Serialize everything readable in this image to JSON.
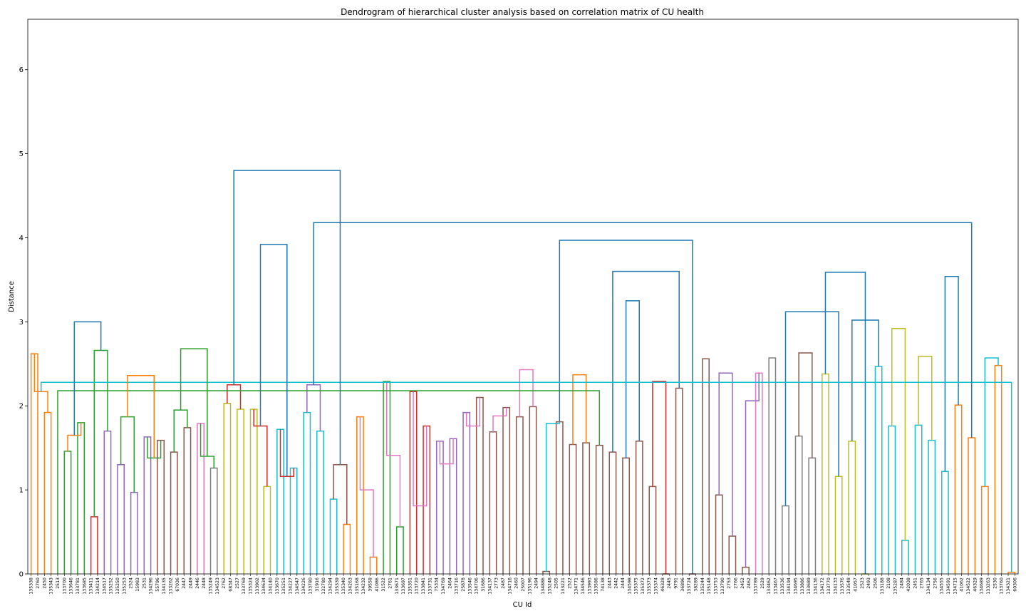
{
  "chart_data": {
    "type": "dendrogram",
    "title": "Dendrogram of hierarchical cluster analysis based on correlation matrix of CU health",
    "xlabel": "CU Id",
    "ylabel": "Distance",
    "ylim": [
      0,
      6.6
    ],
    "yticks": [
      0,
      1,
      2,
      3,
      4,
      5,
      6
    ],
    "grid": false,
    "colors": {
      "orange": "#ff7f0e",
      "green": "#2ca02c",
      "red": "#d62728",
      "purple": "#9467bd",
      "brown": "#8c564b",
      "pink": "#e377c2",
      "gray": "#7f7f7f",
      "olive": "#bcbd22",
      "cyan": "#17becf",
      "above_threshold": "#1f77b4"
    },
    "leaves": [
      "135338",
      "2760",
      "2450",
      "135343",
      "2513",
      "133700",
      "133646",
      "133781",
      "133685",
      "133411",
      "134214",
      "134517",
      "135252",
      "135250",
      "135253",
      "2524",
      "15983",
      "2531",
      "134296",
      "55796",
      "134135",
      "133262",
      "67036",
      "2447",
      "2449",
      "2446",
      "2448",
      "135249",
      "134523",
      "2762",
      "68347",
      "2527",
      "133769",
      "135324",
      "133902",
      "134634",
      "134140",
      "133670",
      "135251",
      "134227",
      "134547",
      "134226",
      "133780",
      "31916",
      "132780",
      "134294",
      "135339",
      "135340",
      "134263",
      "135168",
      "134232",
      "39558",
      "41086",
      "31522",
      "2761",
      "133671",
      "133697",
      "135351",
      "133720",
      "133841",
      "133731",
      "75334",
      "134769",
      "2464",
      "133716",
      "25878",
      "133546",
      "134706",
      "31686",
      "134137",
      "2773",
      "2487",
      "134716",
      "2460",
      "25007",
      "135196",
      "2494",
      "134886",
      "135248",
      "2505",
      "133221",
      "2522",
      "134771",
      "134546",
      "133993",
      "133586",
      "74138",
      "2443",
      "2442",
      "2444",
      "134598",
      "135375",
      "135372",
      "135373",
      "135374",
      "46328",
      "2445",
      "9791",
      "36896",
      "133724",
      "38289",
      "135244",
      "135148",
      "133753",
      "133790",
      "2753",
      "2766",
      "2452",
      "2462",
      "133789",
      "2529",
      "133462",
      "133467",
      "133536",
      "134194",
      "134695",
      "133886",
      "133689",
      "134136",
      "134172",
      "133770",
      "134133",
      "133576",
      "133548",
      "41057",
      "2523",
      "2493",
      "2506",
      "133188",
      "2108",
      "135287",
      "2484",
      "42038",
      "2451",
      "2765",
      "134134",
      "2756",
      "134555",
      "134591",
      "134715",
      "41062",
      "134522",
      "46329",
      "134689",
      "133263",
      "2530",
      "133760",
      "134321",
      "60306"
    ],
    "merges": [
      {
        "left": 0,
        "right": 1,
        "h": 2.62,
        "color": "orange"
      },
      {
        "left": 2,
        "right": 3,
        "h": 1.92,
        "color": "orange"
      },
      {
        "left": 5,
        "right": 6,
        "h": 1.46,
        "color": "green"
      },
      {
        "left": 7,
        "right": 8,
        "h": 1.8,
        "color": "green"
      },
      {
        "left": 9,
        "right": 10,
        "h": 0.68,
        "color": "red"
      },
      {
        "left": 11,
        "right": 12,
        "h": 1.7,
        "color": "purple"
      },
      {
        "left": 13,
        "right": 14,
        "h": 1.3,
        "color": "purple"
      },
      {
        "left": 15,
        "right": 16,
        "h": 0.97,
        "color": "purple"
      },
      {
        "left": 17,
        "right": 18,
        "h": 1.63,
        "color": "purple"
      },
      {
        "left": 19,
        "right": 20,
        "h": 1.59,
        "color": "brown"
      },
      {
        "left": 21,
        "right": 22,
        "h": 1.45,
        "color": "brown"
      },
      {
        "left": 23,
        "right": 24,
        "h": 1.74,
        "color": "brown"
      },
      {
        "left": 25,
        "right": 26,
        "h": 1.79,
        "color": "pink"
      },
      {
        "left": 27,
        "right": 28,
        "h": 1.26,
        "color": "gray"
      },
      {
        "left": 29,
        "right": 30,
        "h": 2.03,
        "color": "olive"
      },
      {
        "left": 31,
        "right": 32,
        "h": 1.96,
        "color": "olive"
      },
      {
        "left": 33,
        "right": 34,
        "h": 1.96,
        "color": "olive"
      },
      {
        "left": 35,
        "right": 36,
        "h": 1.04,
        "color": "olive"
      },
      {
        "left": 37,
        "right": 38,
        "h": 1.72,
        "color": "cyan"
      },
      {
        "left": 39,
        "right": 40,
        "h": 1.26,
        "color": "cyan"
      },
      {
        "left": 41,
        "right": 42,
        "h": 1.92,
        "color": "cyan"
      },
      {
        "left": 43,
        "right": 44,
        "h": 1.7,
        "color": "cyan"
      },
      {
        "left": 45,
        "right": 46,
        "h": 0.89,
        "color": "cyan"
      },
      {
        "left": 47,
        "right": 48,
        "h": 0.59,
        "color": "orange"
      },
      {
        "left": 49,
        "right": 50,
        "h": 1.87,
        "color": "orange"
      },
      {
        "left": 51,
        "right": 52,
        "h": 0.2,
        "color": "orange"
      },
      {
        "left": 53,
        "right": 54,
        "h": 2.29,
        "color": "green"
      },
      {
        "left": 55,
        "right": 56,
        "h": 0.56,
        "color": "green"
      },
      {
        "left": 57,
        "right": 58,
        "h": 2.17,
        "color": "red"
      },
      {
        "left": 59,
        "right": 60,
        "h": 1.76,
        "color": "red"
      },
      {
        "left": 61,
        "right": 62,
        "h": 1.58,
        "color": "purple"
      },
      {
        "left": 63,
        "right": 64,
        "h": 1.61,
        "color": "purple"
      },
      {
        "left": 65,
        "right": 66,
        "h": 1.92,
        "color": "purple"
      },
      {
        "left": 67,
        "right": 68,
        "h": 2.1,
        "color": "brown"
      },
      {
        "left": 69,
        "right": 70,
        "h": 1.69,
        "color": "brown"
      },
      {
        "left": 71,
        "right": 72,
        "h": 1.98,
        "color": "brown"
      },
      {
        "left": 73,
        "right": 74,
        "h": 1.87,
        "color": "brown"
      },
      {
        "left": 75,
        "right": 76,
        "h": 1.99,
        "color": "brown"
      },
      {
        "left": 77,
        "right": 78,
        "h": 0.03,
        "color": "brown"
      },
      {
        "left": 79,
        "right": 80,
        "h": 1.81,
        "color": "brown"
      },
      {
        "left": 81,
        "right": 82,
        "h": 1.54,
        "color": "brown"
      },
      {
        "left": 83,
        "right": 84,
        "h": 1.56,
        "color": "brown"
      },
      {
        "left": 85,
        "right": 86,
        "h": 1.53,
        "color": "brown"
      },
      {
        "left": 87,
        "right": 88,
        "h": 1.45,
        "color": "brown"
      },
      {
        "left": 89,
        "right": 90,
        "h": 1.38,
        "color": "brown"
      },
      {
        "left": 91,
        "right": 92,
        "h": 1.58,
        "color": "brown"
      },
      {
        "left": 93,
        "right": 94,
        "h": 1.04,
        "color": "brown"
      },
      {
        "left": 95,
        "right": 96,
        "h": 0.0,
        "color": "brown"
      },
      {
        "left": 97,
        "right": 98,
        "h": 2.21,
        "color": "brown"
      },
      {
        "left": 99,
        "right": 100,
        "h": 0.0,
        "color": "brown"
      },
      {
        "left": 101,
        "right": 102,
        "h": 2.56,
        "color": "brown"
      },
      {
        "left": 103,
        "right": 104,
        "h": 0.94,
        "color": "brown"
      },
      {
        "left": 105,
        "right": 106,
        "h": 0.45,
        "color": "brown"
      },
      {
        "left": 107,
        "right": 108,
        "h": 0.08,
        "color": "brown"
      },
      {
        "left": 109,
        "right": 110,
        "h": 2.39,
        "color": "pink"
      },
      {
        "left": 111,
        "right": 112,
        "h": 2.57,
        "color": "gray"
      },
      {
        "left": 113,
        "right": 114,
        "h": 0.81,
        "color": "gray"
      },
      {
        "left": 115,
        "right": 116,
        "h": 1.64,
        "color": "gray"
      },
      {
        "left": 117,
        "right": 118,
        "h": 1.38,
        "color": "gray"
      },
      {
        "left": 119,
        "right": 120,
        "h": 2.38,
        "color": "olive"
      },
      {
        "left": 121,
        "right": 122,
        "h": 1.16,
        "color": "olive"
      },
      {
        "left": 123,
        "right": 124,
        "h": 1.58,
        "color": "olive"
      },
      {
        "left": 125,
        "right": 126,
        "h": 0.0,
        "color": "olive"
      },
      {
        "left": 127,
        "right": 128,
        "h": 2.47,
        "color": "cyan"
      },
      {
        "left": 129,
        "right": 130,
        "h": 1.76,
        "color": "cyan"
      },
      {
        "left": 131,
        "right": 132,
        "h": 0.4,
        "color": "cyan"
      },
      {
        "left": 133,
        "right": 134,
        "h": 1.77,
        "color": "cyan"
      },
      {
        "left": 135,
        "right": 136,
        "h": 1.59,
        "color": "cyan"
      },
      {
        "left": 137,
        "right": 138,
        "h": 1.22,
        "color": "cyan"
      },
      {
        "left": 139,
        "right": 140,
        "h": 2.01,
        "color": "orange"
      },
      {
        "left": 141,
        "right": 142,
        "h": 1.62,
        "color": "orange"
      },
      {
        "left": 143,
        "right": 144,
        "h": 1.04,
        "color": "orange"
      },
      {
        "left": 145,
        "right": 146,
        "h": 2.48,
        "color": "orange"
      },
      {
        "left": 147,
        "right": 148,
        "h": 0.02,
        "color": "orange"
      },
      {
        "left": 149,
        "right": 150,
        "h": 2.17,
        "color": "orange"
      },
      {
        "left": 151,
        "right": 152,
        "h": 1.65,
        "color": "orange"
      },
      {
        "left": 153,
        "right": 154,
        "h": 2.66,
        "color": "green"
      },
      {
        "left": 155,
        "right": 156,
        "h": 1.87,
        "color": "green"
      },
      {
        "left": 157,
        "right": 158,
        "h": 1.38,
        "color": "green"
      },
      {
        "left": 159,
        "right": 160,
        "h": 1.95,
        "color": "green"
      },
      {
        "left": 161,
        "right": 162,
        "h": 1.4,
        "color": "green"
      },
      {
        "left": 163,
        "right": 164,
        "h": 2.25,
        "color": "red"
      },
      {
        "left": 165,
        "right": 166,
        "h": 1.76,
        "color": "red"
      },
      {
        "left": 167,
        "right": 168,
        "h": 1.16,
        "color": "red"
      },
      {
        "left": 169,
        "right": 170,
        "h": 2.25,
        "color": "purple"
      },
      {
        "left": 171,
        "right": 172,
        "h": 1.3,
        "color": "brown"
      },
      {
        "left": 173,
        "right": 174,
        "h": 1.0,
        "color": "pink"
      },
      {
        "left": 175,
        "right": 176,
        "h": 1.41,
        "color": "pink"
      },
      {
        "left": 177,
        "right": 178,
        "h": 0.81,
        "color": "pink"
      },
      {
        "left": 179,
        "right": 180,
        "h": 1.31,
        "color": "pink"
      },
      {
        "left": 181,
        "right": 182,
        "h": 1.76,
        "color": "pink"
      },
      {
        "left": 183,
        "right": 184,
        "h": 1.88,
        "color": "pink"
      },
      {
        "left": 185,
        "right": 186,
        "h": 2.43,
        "color": "pink"
      },
      {
        "left": 187,
        "right": 188,
        "h": 1.79,
        "color": "cyan"
      },
      {
        "left": 189,
        "right": 190,
        "h": 2.37,
        "color": "orange"
      },
      {
        "left": 4,
        "right": 191,
        "h": 2.18,
        "color": "green"
      },
      {
        "left": 193,
        "right": 194,
        "h": 3.25,
        "color": "above_threshold"
      },
      {
        "left": 192,
        "right": 197,
        "h": 3.6,
        "color": "above_threshold"
      },
      {
        "left": 188,
        "right": 198,
        "h": 3.97,
        "color": "above_threshold"
      },
      {
        "left": 196,
        "right": 195,
        "h": 2.29,
        "color": "red"
      },
      {
        "left": 200,
        "right": 201,
        "h": 2.39,
        "color": "purple"
      },
      {
        "left": 202,
        "right": 203,
        "h": 2.06,
        "color": "purple"
      },
      {
        "left": 206,
        "right": 207,
        "h": 2.63,
        "color": "brown"
      },
      {
        "left": 205,
        "right": 209,
        "h": 3.12,
        "color": "above_threshold"
      },
      {
        "left": 208,
        "right": 211,
        "h": 3.59,
        "color": "above_threshold"
      },
      {
        "left": 210,
        "right": 212,
        "h": 3.02,
        "color": "above_threshold"
      },
      {
        "left": 213,
        "right": 214,
        "h": 2.92,
        "color": "olive"
      },
      {
        "left": 215,
        "right": 216,
        "h": 2.59,
        "color": "olive"
      },
      {
        "left": 217,
        "right": 218,
        "h": 3.54,
        "color": "above_threshold"
      },
      {
        "left": 220,
        "right": 221,
        "h": 2.57,
        "color": "cyan"
      },
      {
        "left": 222,
        "right": 223,
        "h": 2.28,
        "color": "cyan"
      },
      {
        "left": 224,
        "right": 225,
        "h": 3.0,
        "color": "above_threshold"
      },
      {
        "left": 226,
        "right": 227,
        "h": 2.36,
        "color": "orange"
      },
      {
        "left": 228,
        "right": 229,
        "h": 2.68,
        "color": "green"
      },
      {
        "left": 231,
        "right": 232,
        "h": 3.92,
        "color": "above_threshold"
      },
      {
        "left": 219,
        "right": 233,
        "h": 4.18,
        "color": "above_threshold"
      },
      {
        "left": 230,
        "right": 234,
        "h": 4.8,
        "color": "above_threshold"
      }
    ]
  }
}
